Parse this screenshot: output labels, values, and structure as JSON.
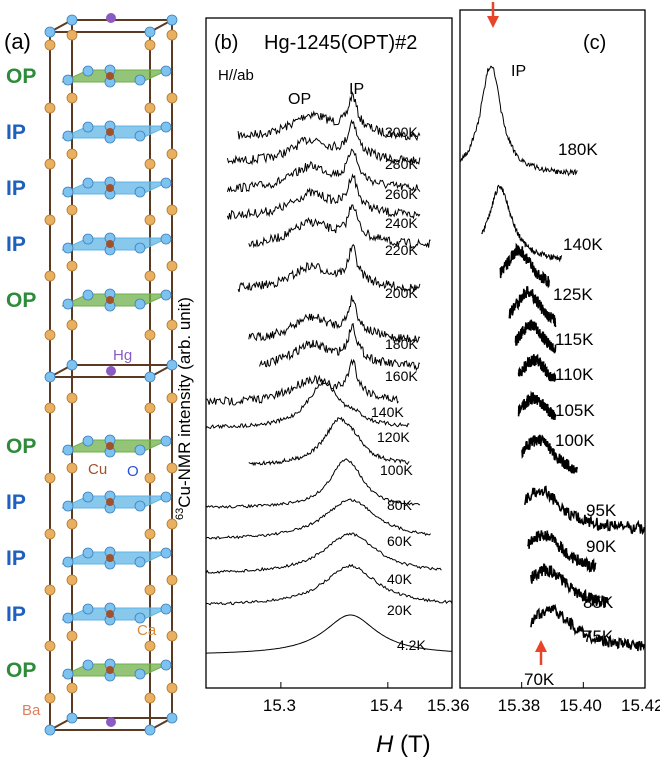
{
  "panel_a": {
    "label": "(a)",
    "layer_labels": [
      "OP",
      "IP",
      "IP",
      "IP",
      "OP",
      "OP",
      "IP",
      "IP",
      "IP",
      "OP"
    ],
    "atom_labels": {
      "hg": "Hg",
      "cu": "Cu",
      "o": "O",
      "ca": "Ca",
      "ba": "Ba"
    },
    "colors": {
      "op": "#2e8b3a",
      "ip": "#1f5fbf",
      "hg": "#8a5bc2",
      "cu": "#a0522d",
      "o": "#2a4fd6",
      "ca": "#d88a3a",
      "ba": "#e08060",
      "plane_op": "#6fb04a",
      "plane_ip": "#5fb6e6",
      "atom_blue": "#7ec3f0",
      "atom_orange": "#e8b060"
    }
  },
  "panel_b": {
    "label": "(b)",
    "title": "Hg-1245(OPT)#2",
    "field": "H//ab",
    "peak_labels": [
      "OP",
      "IP"
    ],
    "temperatures": [
      "300K",
      "280K",
      "260K",
      "240K",
      "220K",
      "200K",
      "180K",
      "160K",
      "140K",
      "120K",
      "100K",
      "80K",
      "60K",
      "40K",
      "20K",
      "4.2K"
    ],
    "x_ticks": [
      "15.3",
      "15.4"
    ]
  },
  "panel_c": {
    "label": "(c)",
    "peak_label": "IP",
    "temperatures": [
      "180K",
      "140K",
      "125K",
      "115K",
      "110K",
      "105K",
      "100K",
      "95K",
      "90K",
      "85K",
      "75K",
      "70K"
    ],
    "x_ticks": [
      "15.36",
      "15.38",
      "15.40",
      "15.42"
    ],
    "arrow_color": "#e8442c"
  },
  "y_axis_label_sup": "63",
  "y_axis_label": "Cu-NMR intensity (arb. unit)",
  "x_axis_label_var": "H",
  "x_axis_label_unit": " (T)",
  "chart_data": [
    {
      "type": "line",
      "panel": "b",
      "title": "Hg-1245(OPT)#2",
      "xlabel": "H (T)",
      "ylabel": "63Cu-NMR intensity (arb. unit)",
      "x_ticks": [
        15.3,
        15.4
      ],
      "xlim": [
        15.23,
        15.46
      ],
      "series": [
        {
          "name": "300K",
          "x_range": [
            15.26,
            15.43
          ],
          "peaks": [
            15.33,
            15.37
          ]
        },
        {
          "name": "280K",
          "x_range": [
            15.25,
            15.43
          ],
          "peaks": [
            15.33,
            15.37
          ]
        },
        {
          "name": "260K",
          "x_range": [
            15.25,
            15.43
          ],
          "peaks": [
            15.33,
            15.37
          ]
        },
        {
          "name": "240K",
          "x_range": [
            15.25,
            15.43
          ],
          "peaks": [
            15.33,
            15.37
          ]
        },
        {
          "name": "220K",
          "x_range": [
            15.27,
            15.44
          ],
          "peaks": [
            15.33,
            15.37
          ]
        },
        {
          "name": "200K",
          "x_range": [
            15.26,
            15.43
          ],
          "peaks": [
            15.33,
            15.37
          ]
        },
        {
          "name": "180K",
          "x_range": [
            15.27,
            15.43
          ],
          "peaks": [
            15.33,
            15.37
          ]
        },
        {
          "name": "160K",
          "x_range": [
            15.28,
            15.43
          ],
          "peaks": [
            15.33,
            15.37
          ]
        },
        {
          "name": "140K",
          "x_range": [
            15.23,
            15.41
          ],
          "peaks": [
            15.33,
            15.37
          ]
        },
        {
          "name": "120K",
          "x_range": [
            15.23,
            15.42
          ],
          "peaks": [
            15.34
          ]
        },
        {
          "name": "100K",
          "x_range": [
            15.27,
            15.42
          ],
          "peaks": [
            15.355
          ]
        },
        {
          "name": "80K",
          "x_range": [
            15.23,
            15.43
          ],
          "peaks": [
            15.36
          ]
        },
        {
          "name": "60K",
          "x_range": [
            15.23,
            15.44
          ],
          "peaks": [
            15.365
          ]
        },
        {
          "name": "40K",
          "x_range": [
            15.23,
            15.45
          ],
          "peaks": [
            15.365
          ]
        },
        {
          "name": "20K",
          "x_range": [
            15.23,
            15.46
          ],
          "peaks": [
            15.365
          ]
        },
        {
          "name": "4.2K",
          "x_range": [
            15.23,
            15.46
          ],
          "peaks": [
            15.365
          ]
        }
      ]
    },
    {
      "type": "line",
      "panel": "c",
      "xlabel": "H (T)",
      "x_ticks": [
        15.36,
        15.38,
        15.4,
        15.42
      ],
      "xlim": [
        15.36,
        15.42
      ],
      "series": [
        {
          "name": "180K",
          "x_range": [
            15.36,
            15.398
          ],
          "peak": 15.37
        },
        {
          "name": "140K",
          "x_range": [
            15.367,
            15.393
          ],
          "peak": 15.373
        },
        {
          "name": "125K",
          "x_range": [
            15.373,
            15.389
          ],
          "peak": 15.379
        },
        {
          "name": "115K",
          "x_range": [
            15.376,
            15.391
          ],
          "peak": 15.382
        },
        {
          "name": "110K",
          "x_range": [
            15.378,
            15.391
          ],
          "peak": 15.383
        },
        {
          "name": "105K",
          "x_range": [
            15.379,
            15.391
          ],
          "peak": 15.384
        },
        {
          "name": "100K",
          "x_range": [
            15.379,
            15.391
          ],
          "peak": 15.384
        },
        {
          "name": "95K",
          "x_range": [
            15.38,
            15.398
          ],
          "peak": 15.385
        },
        {
          "name": "90K",
          "x_range": [
            15.381,
            15.42
          ],
          "peak": 15.386
        },
        {
          "name": "85K",
          "x_range": [
            15.382,
            15.404
          ],
          "peak": 15.387
        },
        {
          "name": "75K",
          "x_range": [
            15.383,
            15.408
          ],
          "peak": 15.388
        },
        {
          "name": "70K",
          "x_range": [
            15.383,
            15.42
          ],
          "peak": 15.389
        }
      ]
    }
  ]
}
